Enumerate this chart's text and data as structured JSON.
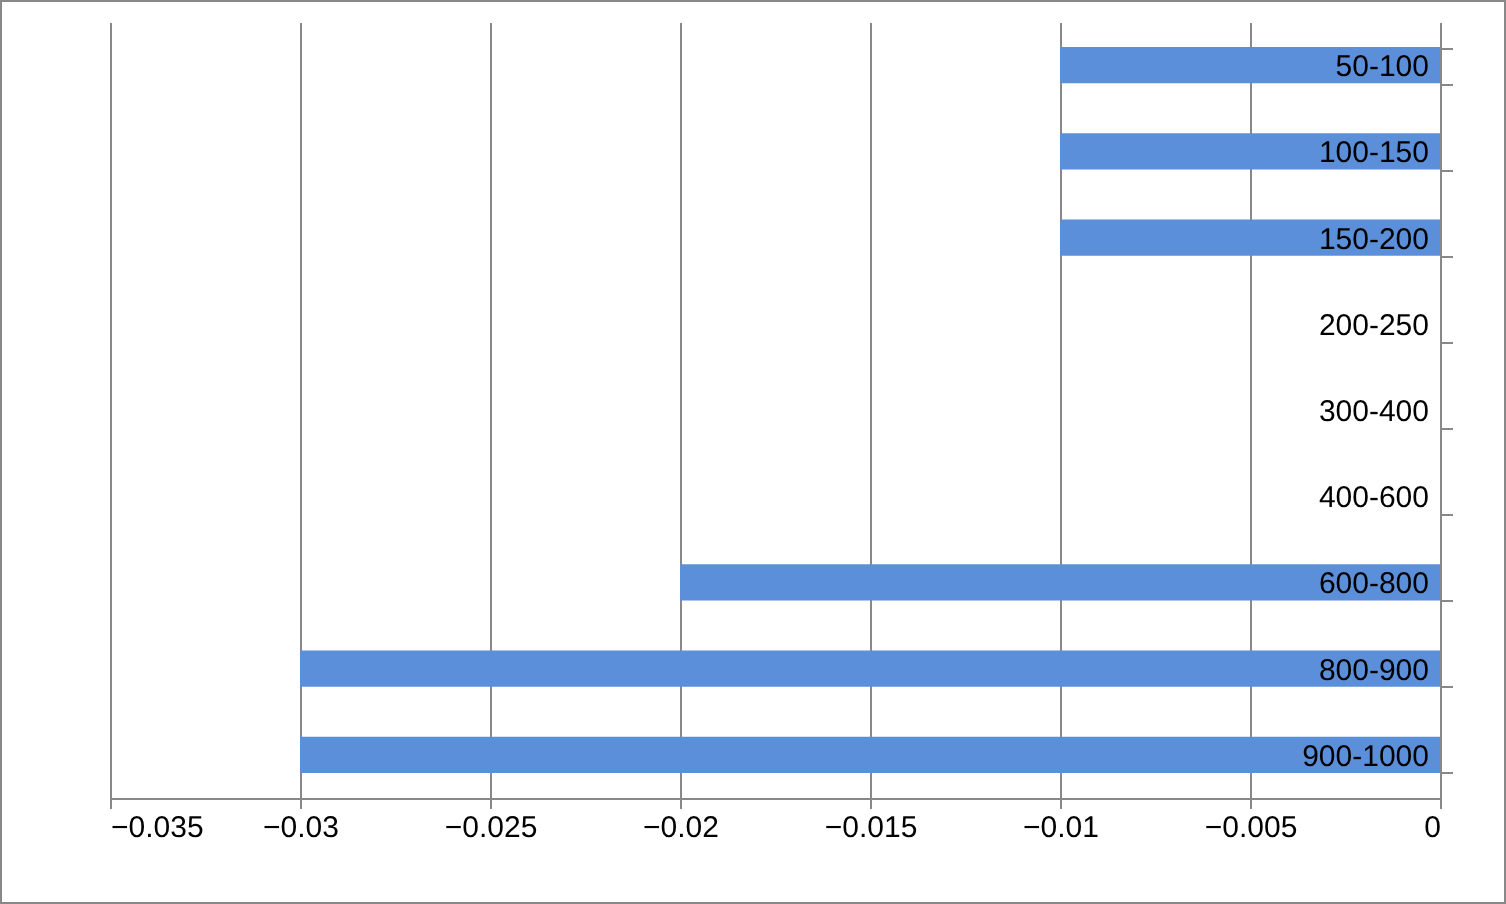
{
  "chart_data": {
    "type": "bar",
    "orientation": "horizontal",
    "categories": [
      "50-100",
      "100-150",
      "150-200",
      "200-250",
      "300-400",
      "400-600",
      "600-800",
      "800-900",
      "900-1000"
    ],
    "values": [
      -0.01,
      -0.01,
      -0.01,
      0,
      0,
      0,
      -0.02,
      -0.03,
      -0.03
    ],
    "color": "#5b8fd9",
    "xlim": [
      -0.035,
      0
    ],
    "xticks": [
      -0.035,
      -0.03,
      -0.025,
      -0.02,
      -0.015,
      -0.01,
      -0.005,
      0
    ],
    "grid": "x"
  }
}
